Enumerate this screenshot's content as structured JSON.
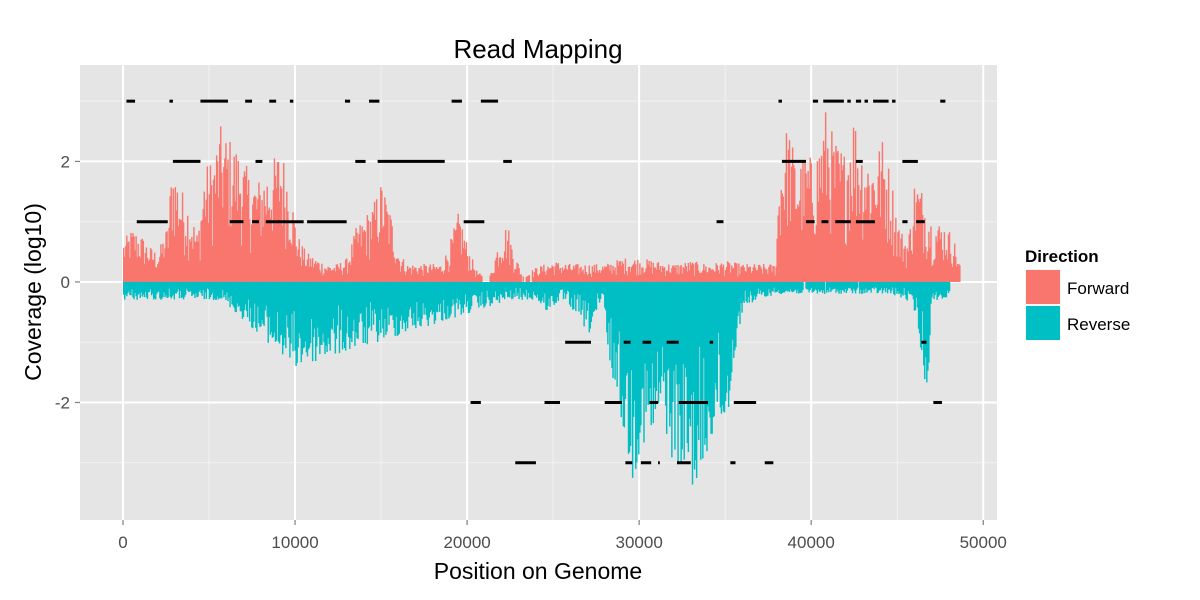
{
  "chart_data": {
    "type": "bar",
    "title": "Read Mapping",
    "xlabel": "Position on Genome",
    "ylabel": "Coverage (log10)",
    "xlim": [
      -2500,
      50800
    ],
    "ylim": [
      -3.95,
      3.6
    ],
    "x_ticks": [
      0,
      10000,
      20000,
      30000,
      40000,
      50000
    ],
    "x_tick_labels": [
      "0",
      "10000",
      "20000",
      "30000",
      "40000",
      "50000"
    ],
    "y_ticks": [
      -2,
      0,
      2
    ],
    "y_tick_labels": [
      "-2",
      "0",
      "2"
    ],
    "grid": true,
    "legend": {
      "title": "Direction",
      "position": "right",
      "entries": [
        {
          "label": "Forward",
          "color": "#F8766D"
        },
        {
          "label": "Reverse",
          "color": "#00BFC4"
        }
      ]
    },
    "series": [
      {
        "name": "Forward",
        "color": "#F8766D",
        "profile": [
          [
            0,
            0.7
          ],
          [
            500,
            0.9
          ],
          [
            1000,
            0.8
          ],
          [
            1500,
            0.6
          ],
          [
            2000,
            0.5
          ],
          [
            2600,
            1.0
          ],
          [
            2800,
            2.1
          ],
          [
            3300,
            1.6
          ],
          [
            3800,
            1.3
          ],
          [
            4300,
            0.8
          ],
          [
            4700,
            1.9
          ],
          [
            5200,
            2.1
          ],
          [
            5600,
            2.6
          ],
          [
            6200,
            2.4
          ],
          [
            6800,
            2.2
          ],
          [
            7300,
            1.8
          ],
          [
            7800,
            1.7
          ],
          [
            8300,
            1.9
          ],
          [
            8800,
            2.1
          ],
          [
            9100,
            2.3
          ],
          [
            9500,
            1.9
          ],
          [
            9800,
            1.4
          ],
          [
            10100,
            0.8
          ],
          [
            10600,
            0.5
          ],
          [
            11200,
            0.4
          ],
          [
            11800,
            0.3
          ],
          [
            12400,
            0.3
          ],
          [
            13000,
            0.4
          ],
          [
            13500,
            0.9
          ],
          [
            14000,
            1.1
          ],
          [
            14500,
            1.3
          ],
          [
            15000,
            1.7
          ],
          [
            15500,
            1.2
          ],
          [
            16000,
            0.5
          ],
          [
            16500,
            0.3
          ],
          [
            17000,
            0.3
          ],
          [
            17500,
            0.3
          ],
          [
            18500,
            0.3
          ],
          [
            19000,
            0.7
          ],
          [
            19500,
            1.2
          ],
          [
            20000,
            0.6
          ],
          [
            20500,
            0.2
          ],
          [
            21200,
            0.0
          ],
          [
            21800,
            0.7
          ],
          [
            22300,
            1.0
          ],
          [
            22600,
            0.6
          ],
          [
            23200,
            0.1
          ],
          [
            24000,
            0.25
          ],
          [
            25000,
            0.35
          ],
          [
            26000,
            0.3
          ],
          [
            27000,
            0.3
          ],
          [
            28000,
            0.3
          ],
          [
            29000,
            0.4
          ],
          [
            30000,
            0.4
          ],
          [
            31000,
            0.35
          ],
          [
            32000,
            0.3
          ],
          [
            33000,
            0.35
          ],
          [
            34000,
            0.3
          ],
          [
            35000,
            0.35
          ],
          [
            36000,
            0.3
          ],
          [
            37000,
            0.3
          ],
          [
            37900,
            0.3
          ],
          [
            38100,
            1.9
          ],
          [
            38600,
            2.7
          ],
          [
            39100,
            2.0
          ],
          [
            39600,
            2.1
          ],
          [
            40200,
            2.1
          ],
          [
            40800,
            2.9
          ],
          [
            41300,
            2.4
          ],
          [
            41900,
            2.2
          ],
          [
            42400,
            2.9
          ],
          [
            42900,
            2.3
          ],
          [
            43500,
            2.1
          ],
          [
            44100,
            2.4
          ],
          [
            44600,
            1.8
          ],
          [
            45100,
            0.9
          ],
          [
            45600,
            0.7
          ],
          [
            46000,
            1.8
          ],
          [
            46500,
            1.5
          ],
          [
            47000,
            1.0
          ],
          [
            47600,
            1.0
          ],
          [
            48200,
            0.8
          ],
          [
            48600,
            0.3
          ]
        ]
      },
      {
        "name": "Reverse",
        "color": "#00BFC4",
        "profile": [
          [
            0,
            -0.3
          ],
          [
            5700,
            -0.3
          ],
          [
            10000,
            -1.45
          ],
          [
            22500,
            -0.3
          ],
          [
            23300,
            -0.3
          ],
          [
            24000,
            -0.3
          ],
          [
            24500,
            -0.5
          ],
          [
            25500,
            -0.3
          ],
          [
            26500,
            -0.6
          ],
          [
            27000,
            -0.9
          ],
          [
            27900,
            -0.3
          ],
          [
            28100,
            -1.2
          ],
          [
            28600,
            -1.8
          ],
          [
            29100,
            -2.6
          ],
          [
            29600,
            -3.3
          ],
          [
            30100,
            -2.7
          ],
          [
            30700,
            -2.8
          ],
          [
            31300,
            -2.2
          ],
          [
            31800,
            -2.9
          ],
          [
            32300,
            -3.1
          ],
          [
            32900,
            -3.3
          ],
          [
            33400,
            -3.5
          ],
          [
            33900,
            -3.0
          ],
          [
            34500,
            -2.3
          ],
          [
            35000,
            -2.6
          ],
          [
            35400,
            -1.5
          ],
          [
            36000,
            -0.4
          ],
          [
            37000,
            -0.3
          ],
          [
            37900,
            -0.2
          ],
          [
            44500,
            -0.2
          ],
          [
            45500,
            -0.3
          ],
          [
            46000,
            -0.5
          ],
          [
            46400,
            -1.3
          ],
          [
            46700,
            -1.9
          ],
          [
            47000,
            -0.3
          ],
          [
            48000,
            -0.3
          ]
        ]
      }
    ],
    "segments": [
      {
        "level": 3,
        "ranges": [
          [
            200,
            700
          ],
          [
            2700,
            2900
          ],
          [
            4500,
            6100
          ],
          [
            7100,
            7500
          ],
          [
            8500,
            8900
          ],
          [
            9700,
            9900
          ],
          [
            12900,
            13200
          ],
          [
            14300,
            14900
          ],
          [
            19100,
            19700
          ],
          [
            20800,
            21800
          ],
          [
            38100,
            38300
          ],
          [
            40100,
            40400
          ],
          [
            40700,
            41900
          ],
          [
            42100,
            42300
          ],
          [
            42600,
            42900
          ],
          [
            43100,
            43300
          ],
          [
            43600,
            44500
          ],
          [
            44700,
            44900
          ],
          [
            47500,
            47800
          ]
        ]
      },
      {
        "level": 2,
        "ranges": [
          [
            2900,
            4500
          ],
          [
            7700,
            8100
          ],
          [
            13500,
            14100
          ],
          [
            14800,
            18700
          ],
          [
            22100,
            22600
          ],
          [
            38300,
            39700
          ],
          [
            42600,
            43000
          ],
          [
            45300,
            46200
          ]
        ]
      },
      {
        "level": 1,
        "ranges": [
          [
            800,
            2600
          ],
          [
            6200,
            7000
          ],
          [
            7500,
            7900
          ],
          [
            8300,
            10500
          ],
          [
            10700,
            13000
          ],
          [
            19800,
            21000
          ],
          [
            34500,
            34900
          ],
          [
            39700,
            40200
          ],
          [
            40600,
            41000
          ],
          [
            41400,
            42300
          ],
          [
            42600,
            43700
          ],
          [
            45300,
            45600
          ],
          [
            46100,
            46600
          ]
        ]
      },
      {
        "level": -1,
        "ranges": [
          [
            25700,
            27200
          ],
          [
            29100,
            29500
          ],
          [
            30200,
            30700
          ],
          [
            31600,
            32300
          ],
          [
            34100,
            34300
          ],
          [
            46400,
            46700
          ]
        ]
      },
      {
        "level": -2,
        "ranges": [
          [
            20200,
            20800
          ],
          [
            24500,
            25400
          ],
          [
            28000,
            29000
          ],
          [
            30600,
            31100
          ],
          [
            32300,
            34000
          ],
          [
            35500,
            36800
          ],
          [
            47100,
            47600
          ]
        ]
      },
      {
        "level": -3,
        "ranges": [
          [
            22800,
            24000
          ],
          [
            29200,
            29600
          ],
          [
            30100,
            30700
          ],
          [
            31100,
            31200
          ],
          [
            32200,
            33000
          ],
          [
            35300,
            35600
          ],
          [
            37300,
            37800
          ]
        ]
      }
    ]
  }
}
